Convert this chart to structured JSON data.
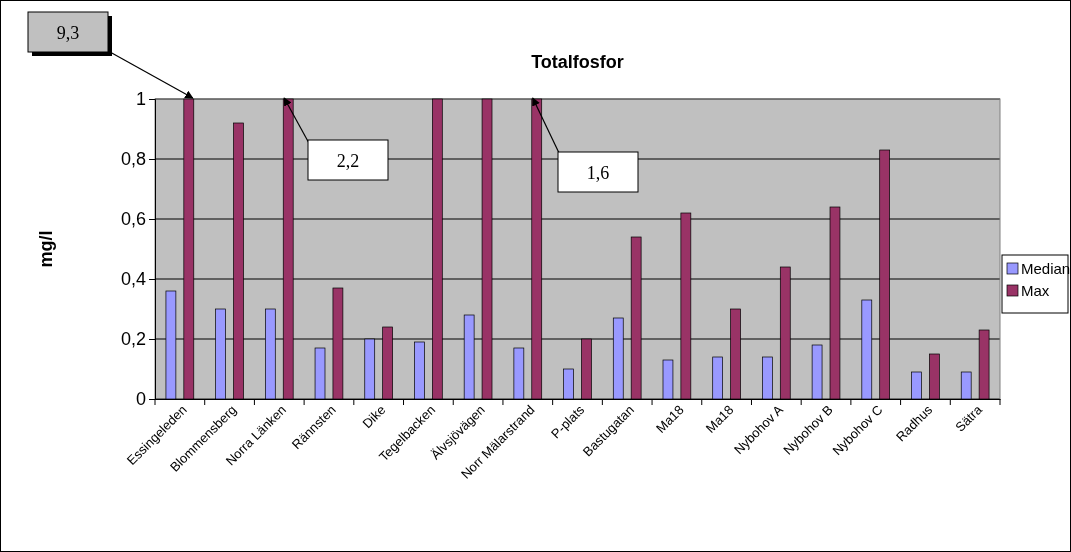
{
  "chart_data": {
    "type": "bar",
    "title": "Totalfosfor",
    "ylabel": "mg/l",
    "categories": [
      "Essingeleden",
      "Blommensberg",
      "Norra Länken",
      "Rännsten",
      "Dike",
      "Tegelbacken",
      "Älvsjövägen",
      "Norr Mälarstrand",
      "P-plats",
      "Bastugatan",
      "Ma18",
      "Ma18",
      "Nybohov A",
      "Nybohov B",
      "Nybohov C",
      "Radhus",
      "Sätra"
    ],
    "series": [
      {
        "name": "Median",
        "color": "#9999ff",
        "values": [
          0.36,
          0.3,
          0.3,
          0.17,
          0.2,
          0.19,
          0.28,
          0.17,
          0.1,
          0.27,
          0.13,
          0.14,
          0.14,
          0.18,
          0.33,
          0.09,
          0.09
        ]
      },
      {
        "name": "Max",
        "color": "#993366",
        "values": [
          1,
          0.92,
          1,
          0.37,
          0.24,
          1,
          1,
          1,
          0.2,
          0.54,
          0.62,
          0.3,
          0.44,
          0.64,
          0.83,
          0.15,
          0.23
        ]
      }
    ],
    "ylim": [
      0,
      1
    ],
    "yticks": [
      0,
      {
        "value": 0.2,
        "label": "0,2"
      },
      {
        "value": 0.4,
        "label": "0,4"
      },
      {
        "value": 0.6,
        "label": "0,6"
      },
      {
        "value": 0.8,
        "label": "0,8"
      },
      1
    ],
    "grid": "y",
    "legend": "right",
    "annotations": [
      "9,3",
      "2,2",
      "1,6"
    ]
  }
}
